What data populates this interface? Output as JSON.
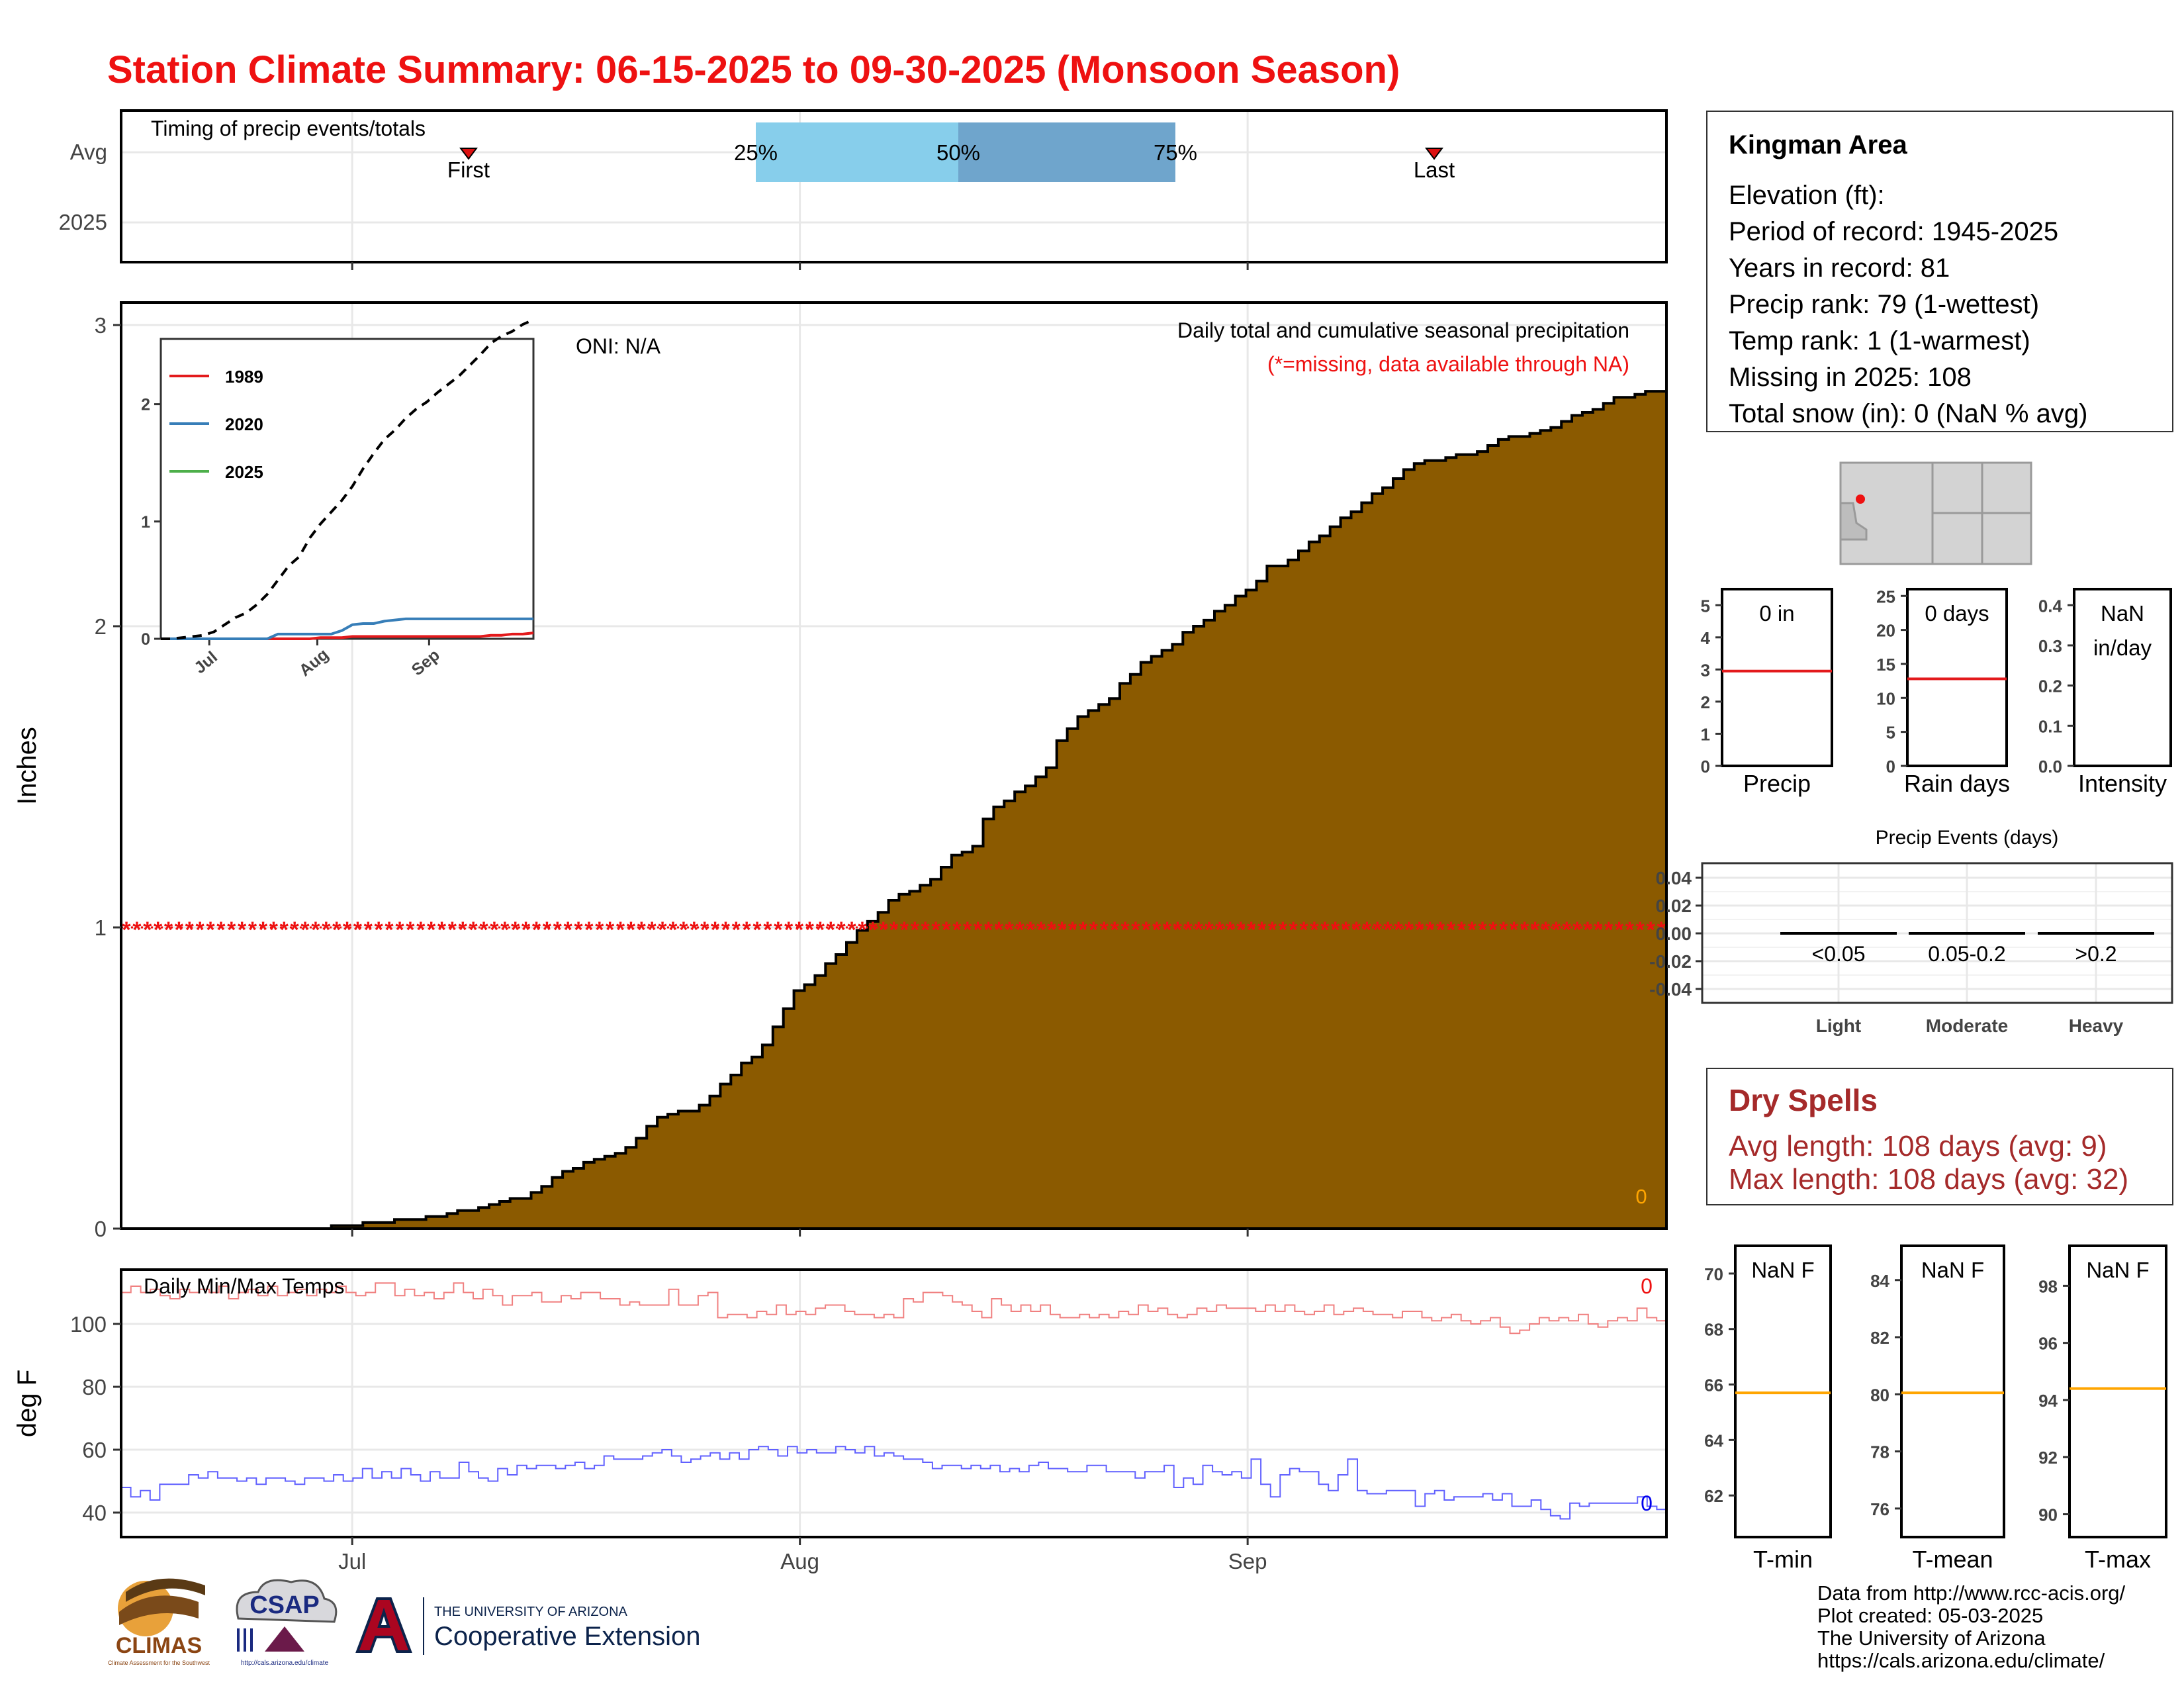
{
  "title": "Station Climate Summary: 06-15-2025 to 09-30-2025 (Monsoon Season)",
  "timing_panel": {
    "title": "Timing of precip events/totals",
    "rows": [
      "Avg",
      "2025"
    ],
    "first_label": "First",
    "last_label": "Last",
    "pct_labels": [
      "25%",
      "50%",
      "75%"
    ],
    "colors": {
      "q25_50": "#87ceeb",
      "q50_75": "#6fa5cc",
      "marker": "#dd1111"
    }
  },
  "x_axis": {
    "tick_labels": [
      "Jul",
      "Aug",
      "Sep"
    ]
  },
  "chart_data": [
    {
      "type": "area",
      "title": "Daily total and cumulative seasonal precipitation",
      "subtitle": "(*=missing, data available through NA)",
      "oni_label": "ONI: N/A",
      "ylabel": "Inches",
      "ylim": [
        0,
        3
      ],
      "yticks": [
        "0",
        "1",
        "2",
        "3"
      ],
      "x_start": "2025-06-15",
      "x_end": "2025-09-30",
      "cumulative_avg_step": [
        0.0,
        0.0,
        0.0,
        0.0,
        0.0,
        0.0,
        0.0,
        0.0,
        0.0,
        0.0,
        0.0,
        0.0,
        0.0,
        0.0,
        0.0,
        0.0,
        0.0,
        0.0,
        0.0,
        0.0,
        0.01,
        0.01,
        0.01,
        0.02,
        0.02,
        0.02,
        0.03,
        0.03,
        0.03,
        0.04,
        0.04,
        0.05,
        0.06,
        0.06,
        0.07,
        0.08,
        0.09,
        0.1,
        0.1,
        0.12,
        0.14,
        0.17,
        0.19,
        0.2,
        0.22,
        0.23,
        0.24,
        0.25,
        0.27,
        0.3,
        0.34,
        0.37,
        0.38,
        0.39,
        0.39,
        0.41,
        0.44,
        0.48,
        0.51,
        0.55,
        0.57,
        0.61,
        0.67,
        0.73,
        0.79,
        0.81,
        0.84,
        0.88,
        0.91,
        0.95,
        0.99,
        1.02,
        1.05,
        1.09,
        1.11,
        1.12,
        1.14,
        1.16,
        1.2,
        1.24,
        1.25,
        1.27,
        1.36,
        1.4,
        1.42,
        1.45,
        1.47,
        1.5,
        1.53,
        1.62,
        1.66,
        1.7,
        1.72,
        1.74,
        1.76,
        1.81,
        1.84,
        1.88,
        1.9,
        1.92,
        1.94,
        1.98,
        2.0,
        2.02,
        2.05,
        2.07,
        2.1,
        2.12,
        2.15,
        2.2,
        2.2,
        2.22,
        2.25,
        2.28,
        2.3,
        2.33,
        2.36,
        2.38,
        2.41,
        2.44,
        2.46,
        2.49,
        2.52,
        2.54,
        2.55,
        2.55,
        2.56,
        2.57,
        2.57,
        2.58,
        2.6,
        2.62,
        2.63,
        2.63,
        2.64,
        2.65,
        2.66,
        2.68,
        2.7,
        2.71,
        2.72,
        2.74,
        2.76,
        2.76,
        2.77,
        2.78,
        2.78
      ],
      "missing_marker_y": 1,
      "missing_marker_color": "#ee1111",
      "fill_color": "#8b5a00",
      "count_label": "0",
      "count_color": "#ffa500"
    },
    {
      "type": "line",
      "title": "",
      "ylim": [
        0,
        2.5
      ],
      "yticks": [
        "0",
        "1",
        "2"
      ],
      "xticks": [
        "Jul",
        "Aug",
        "Sep"
      ],
      "series": [
        {
          "name": "1989",
          "color": "#e31a1c",
          "values": [
            0,
            0,
            0,
            0,
            0,
            0,
            0,
            0,
            0,
            0,
            0,
            0,
            0,
            0,
            0,
            0.01,
            0.01,
            0.01,
            0.02,
            0.02,
            0.02,
            0.02,
            0.02,
            0.02,
            0.02,
            0.02,
            0.02,
            0.02,
            0.02,
            0.02,
            0.02,
            0.03,
            0.03,
            0.04,
            0.04,
            0.05
          ]
        },
        {
          "name": "2020",
          "color": "#377eb8",
          "values": [
            0,
            0,
            0,
            0,
            0,
            0,
            0,
            0,
            0,
            0,
            0,
            0.04,
            0.04,
            0.04,
            0.04,
            0.04,
            0.04,
            0.07,
            0.12,
            0.13,
            0.13,
            0.15,
            0.16,
            0.17,
            0.17,
            0.17,
            0.17,
            0.17,
            0.17,
            0.17,
            0.17,
            0.17,
            0.17,
            0.17,
            0.17,
            0.17
          ]
        },
        {
          "name": "2025",
          "color": "#4daf4a",
          "values": []
        },
        {
          "name": "",
          "color": "#000000",
          "dashed": true,
          "values": [
            0,
            0,
            0.01,
            0.02,
            0.03,
            0.06,
            0.12,
            0.18,
            0.22,
            0.29,
            0.38,
            0.5,
            0.62,
            0.7,
            0.86,
            0.98,
            1.08,
            1.18,
            1.3,
            1.45,
            1.58,
            1.7,
            1.78,
            1.88,
            1.96,
            2.02,
            2.1,
            2.17,
            2.24,
            2.33,
            2.42,
            2.52,
            2.58,
            2.62,
            2.68,
            2.72
          ]
        }
      ]
    },
    {
      "type": "line",
      "title": "Daily Min/Max Temps",
      "ylabel": "deg F",
      "ylim": [
        35,
        120
      ],
      "yticks": [
        "40",
        "60",
        "80",
        "100"
      ],
      "series": [
        {
          "name": "",
          "color": "#f08080",
          "values": [
            110,
            112,
            110,
            111,
            109,
            108,
            111,
            110,
            111,
            110,
            112,
            108,
            110,
            111,
            109,
            112,
            109,
            110,
            111,
            109,
            111,
            110,
            112,
            110,
            109,
            110,
            113,
            113,
            109,
            111,
            109,
            110,
            108,
            110,
            113,
            110,
            108,
            111,
            109,
            106,
            109,
            109,
            110,
            107,
            107,
            109,
            108,
            110,
            110,
            108,
            108,
            106,
            107,
            106,
            106,
            106,
            111,
            106,
            106,
            109,
            110,
            102,
            103,
            103,
            102,
            104,
            103,
            106,
            103,
            104,
            103,
            105,
            106,
            106,
            104,
            103,
            103,
            102,
            103,
            102,
            108,
            107,
            110,
            110,
            109,
            107,
            106,
            104,
            102,
            108,
            106,
            104,
            106,
            104,
            106,
            103,
            102,
            102,
            103,
            102,
            103,
            102,
            104,
            103,
            106,
            104,
            105,
            103,
            102,
            103,
            105,
            104,
            106,
            105,
            105,
            105,
            104,
            106,
            104,
            106,
            104,
            103,
            104,
            106,
            103,
            104,
            105,
            104,
            103,
            103,
            102,
            104,
            104,
            102,
            101,
            102,
            103,
            101,
            100,
            101,
            102,
            99,
            97,
            98,
            100,
            102,
            101,
            102,
            101,
            103,
            100,
            99,
            101,
            102,
            101,
            105,
            102,
            101
          ]
        },
        {
          "name": "",
          "color": "#6060ff",
          "values": [
            48,
            45,
            47,
            44,
            49,
            49,
            49,
            52,
            51,
            53,
            51,
            51,
            50,
            51,
            49,
            51,
            51,
            50,
            49,
            51,
            51,
            50,
            52,
            50,
            51,
            54,
            51,
            53,
            51,
            54,
            52,
            50,
            53,
            51,
            51,
            56,
            53,
            51,
            50,
            54,
            52,
            55,
            54,
            55,
            55,
            54,
            55,
            56,
            54,
            55,
            58,
            57,
            57,
            57,
            58,
            59,
            60,
            58,
            56,
            57,
            58,
            59,
            57,
            59,
            57,
            60,
            61,
            60,
            58,
            61,
            59,
            60,
            59,
            59,
            61,
            60,
            59,
            61,
            58,
            59,
            58,
            57,
            57,
            56,
            54,
            55,
            55,
            54,
            55,
            54,
            55,
            53,
            54,
            53,
            55,
            56,
            54,
            54,
            53,
            53,
            55,
            55,
            53,
            53,
            53,
            51,
            53,
            53,
            55,
            48,
            51,
            49,
            55,
            53,
            52,
            53,
            51,
            57,
            49,
            45,
            52,
            54,
            53,
            53,
            49,
            47,
            52,
            57,
            47,
            46,
            46,
            47,
            47,
            47,
            42,
            46,
            47,
            44,
            45,
            45,
            45,
            46,
            44,
            46,
            42,
            42,
            44,
            41,
            39,
            38,
            43,
            42,
            43,
            43,
            43,
            43,
            43,
            45,
            42,
            41
          ]
        }
      ],
      "max_count_label": "0",
      "min_count_label": "0"
    },
    {
      "type": "bar",
      "categories": [
        "Precip",
        "Rain days",
        "Intensity"
      ],
      "panels": [
        {
          "label": "Precip",
          "value_text": "0 in",
          "avg": 2.95,
          "ylim": [
            0,
            5.5
          ],
          "yticks": [
            "0",
            "1",
            "2",
            "3",
            "4",
            "5"
          ]
        },
        {
          "label": "Rain days",
          "value_text": "0 days",
          "avg": 12.8,
          "ylim": [
            0,
            26
          ],
          "yticks": [
            "0",
            "5",
            "10",
            "15",
            "20",
            "25"
          ]
        },
        {
          "label": "Intensity",
          "value_text": "NaN",
          "value_text2": "in/day",
          "avg": null,
          "ylim": [
            0,
            0.44
          ],
          "yticks": [
            "0.0",
            "0.1",
            "0.2",
            "0.3",
            "0.4"
          ]
        }
      ],
      "avg_color": "#e31a1c"
    },
    {
      "type": "bar",
      "title": "Precip Events (days)",
      "categories": [
        "Light",
        "Moderate",
        "Heavy"
      ],
      "bar_labels": [
        "<0.05",
        "0.05-0.2",
        ">0.2"
      ],
      "values": [
        0,
        0,
        0
      ],
      "ylim": [
        -0.045,
        0.045
      ],
      "yticks": [
        "0.04",
        "0.02",
        "0.00",
        "-0.02",
        "-0.04"
      ]
    },
    {
      "type": "bar",
      "categories": [
        "T-min",
        "T-mean",
        "T-max"
      ],
      "panels": [
        {
          "label": "T-min",
          "value_text": "NaN F",
          "avg": 65.7,
          "ylim": [
            60.5,
            71
          ],
          "yticks": [
            "62",
            "64",
            "66",
            "68",
            "70"
          ]
        },
        {
          "label": "T-mean",
          "value_text": "NaN F",
          "avg": 80.05,
          "ylim": [
            75,
            85.2
          ],
          "yticks": [
            "76",
            "78",
            "80",
            "82",
            "84"
          ]
        },
        {
          "label": "T-max",
          "value_text": "NaN F",
          "avg": 94.4,
          "ylim": [
            89.2,
            99.4
          ],
          "yticks": [
            "90",
            "92",
            "94",
            "96",
            "98"
          ]
        }
      ],
      "avg_color": "#ffa500"
    }
  ],
  "station": {
    "name": "Kingman Area",
    "elevation": "Elevation (ft):",
    "period": "Period of record: 1945-2025",
    "years": "Years in record: 81",
    "precip_rank": "Precip rank: 79 (1-wettest)",
    "temp_rank": "Temp rank: 1 (1-warmest)",
    "missing": "Missing in 2025: 108",
    "snow": "Total snow (in): 0 (NaN % avg)"
  },
  "dry_spells": {
    "title": "Dry Spells",
    "avg_length": "Avg length: 108 days (avg: 9)",
    "max_length": "Max length: 108 days (avg: 32)"
  },
  "credits": [
    "Data from http://www.rcc-acis.org/",
    "Plot created: 05-03-2025",
    "The University of Arizona",
    "https://cals.arizona.edu/climate/"
  ],
  "logos": {
    "climas_text": "CLIMAS",
    "climas_sub": "Climate Assessment for the Southwest",
    "csap_text": "CSAP",
    "csap_url": "http://cals.arizona.edu/climate",
    "ua_small": "THE UNIVERSITY OF ARIZONA",
    "ua_big": "Cooperative Extension"
  }
}
